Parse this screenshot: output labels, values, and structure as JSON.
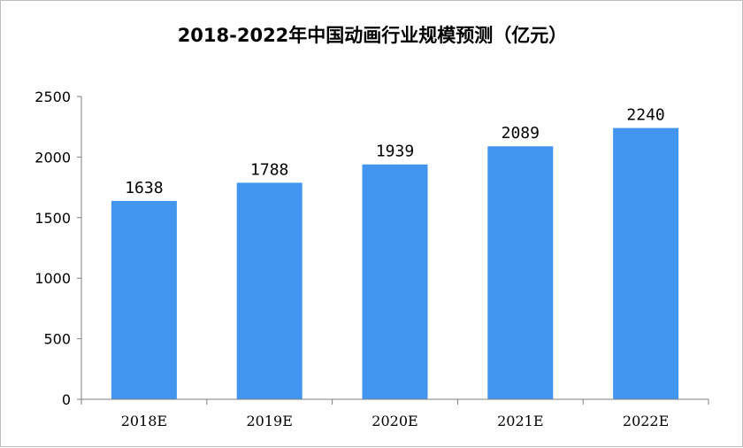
{
  "chart_data": {
    "type": "bar",
    "title": "2018-2022年中国动画行业规模预测（亿元）",
    "xlabel": "",
    "ylabel": "",
    "categories": [
      "2018E",
      "2019E",
      "2020E",
      "2021E",
      "2022E"
    ],
    "values": [
      1638,
      1788,
      1939,
      2089,
      2240
    ],
    "ylim": [
      0,
      2500
    ],
    "yticks": [
      0,
      500,
      1000,
      1500,
      2000,
      2500
    ],
    "grid": false,
    "bar_color": "#4296f0",
    "data_labels": [
      "1638",
      "1788",
      "1939",
      "2089",
      "2240"
    ]
  }
}
